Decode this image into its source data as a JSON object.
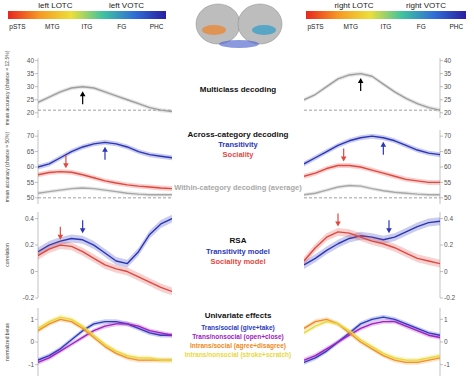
{
  "header": {
    "colorbars": [
      {
        "labels": [
          "left LOTC",
          "left VOTC"
        ],
        "regions": [
          "pSTS",
          "MTG",
          "ITG",
          "FG",
          "PHC"
        ],
        "colors": [
          "#e8261e",
          "#f59a23",
          "#ecdf3a",
          "#3fc3a0",
          "#2f6fd6",
          "#2a1fa0"
        ]
      },
      {
        "labels": [
          "right LOTC",
          "right VOTC"
        ],
        "regions": [
          "pSTS",
          "MTG",
          "ITG",
          "FG",
          "PHC"
        ],
        "colors": [
          "#e8261e",
          "#f59a23",
          "#ecdf3a",
          "#3fc3a0",
          "#2f6fd6",
          "#2a1fa0"
        ]
      }
    ]
  },
  "chart_data": [
    {
      "type": "line",
      "title": "Multiclass decoding",
      "y_label": "mean accuracy (chance = 12.5%)",
      "x": [
        0,
        1,
        2,
        3,
        4,
        5,
        6,
        7,
        8,
        9,
        10,
        11,
        12
      ],
      "xlim": [
        0,
        12
      ],
      "ylim": [
        18,
        41
      ],
      "yticks": [
        20,
        25,
        30,
        35,
        40
      ],
      "tick_labels": "y",
      "reference_lines": [
        21
      ],
      "series": [
        {
          "color": "#9e9e9e",
          "error": 0.8,
          "values": [
            24,
            26,
            28,
            29.5,
            30,
            29.5,
            28,
            26.5,
            25,
            23.5,
            22,
            21,
            20.5
          ]
        }
      ],
      "arrows": [
        {
          "x": 4,
          "y": 28.3,
          "color": "#000000",
          "marker": "arrow-up"
        }
      ]
    },
    {
      "type": "line",
      "x": [
        0,
        1,
        2,
        3,
        4,
        5,
        6,
        7,
        8,
        9,
        10,
        11,
        12
      ],
      "xlim": [
        0,
        12
      ],
      "ylim": [
        18,
        41
      ],
      "yticks": [
        20,
        25,
        30,
        35,
        40
      ],
      "tick_labels": "y",
      "reference_lines": [
        21
      ],
      "series": [
        {
          "color": "#9e9e9e",
          "error": 0.8,
          "values": [
            25,
            27,
            30,
            33,
            34.5,
            35,
            34,
            31,
            28,
            25.5,
            23.5,
            22,
            21
          ]
        }
      ],
      "arrows": [
        {
          "x": 5,
          "y": 33.3,
          "color": "#000000",
          "marker": "arrow-up"
        }
      ]
    },
    {
      "type": "line",
      "title": "Across-category decoding",
      "y_label": "mean accuracy (chance = 50%)",
      "x": [
        0,
        1,
        2,
        3,
        4,
        5,
        6,
        7,
        8,
        9,
        10,
        11,
        12
      ],
      "xlim": [
        0,
        12
      ],
      "ylim": [
        48,
        72
      ],
      "yticks": [
        50,
        55,
        60,
        65,
        70
      ],
      "tick_labels": "y",
      "reference_lines": [
        50
      ],
      "series": [
        {
          "name": "Transitivity",
          "color": "#2a35b8",
          "error": 0.8,
          "values": [
            60,
            61,
            63,
            65,
            66.5,
            67.5,
            68,
            67.5,
            66.5,
            65,
            64,
            63.5,
            63
          ]
        },
        {
          "name": "Sociality",
          "color": "#e0483f",
          "error": 0.8,
          "values": [
            57.5,
            58.2,
            58.5,
            58.3,
            57.5,
            56.5,
            55.5,
            54.8,
            54.2,
            53.8,
            53.5,
            53.2,
            53
          ]
        },
        {
          "name": "Within-category decoding (average)",
          "color": "#a8a8a8",
          "error": 0.6,
          "values": [
            51.5,
            52,
            52.5,
            53,
            53.2,
            53,
            52.5,
            52,
            51.5,
            51.2,
            51,
            51,
            51
          ]
        }
      ],
      "arrows": [
        {
          "x": 2.5,
          "y": 59.6,
          "color": "#e0483f",
          "marker": "arrow-down"
        },
        {
          "x": 6,
          "y": 66.6,
          "color": "#2a35b8",
          "marker": "arrow-up"
        }
      ]
    },
    {
      "type": "line",
      "x": [
        0,
        1,
        2,
        3,
        4,
        5,
        6,
        7,
        8,
        9,
        10,
        11,
        12
      ],
      "xlim": [
        0,
        12
      ],
      "ylim": [
        48,
        72
      ],
      "yticks": [
        50,
        55,
        60,
        65,
        70
      ],
      "tick_labels": "y",
      "reference_lines": [
        50
      ],
      "series": [
        {
          "color": "#2a35b8",
          "error": 0.8,
          "values": [
            61,
            63,
            65,
            67,
            68.5,
            69.5,
            70,
            69.5,
            68.5,
            67,
            65.5,
            64.5,
            64
          ]
        },
        {
          "color": "#e0483f",
          "error": 0.8,
          "values": [
            57,
            58,
            59.5,
            60.5,
            60.5,
            60,
            59,
            58,
            57,
            56,
            55.5,
            55,
            55
          ]
        },
        {
          "color": "#a8a8a8",
          "error": 0.6,
          "values": [
            51,
            51.5,
            52.5,
            53.5,
            54,
            53.8,
            53,
            52.3,
            51.8,
            51.5,
            51.2,
            51,
            51
          ]
        }
      ],
      "arrows": [
        {
          "x": 3.5,
          "y": 61.8,
          "color": "#e0483f",
          "marker": "arrow-down"
        },
        {
          "x": 7,
          "y": 68.2,
          "color": "#2a35b8",
          "marker": "arrow-up"
        }
      ]
    },
    {
      "type": "line",
      "title": "RSA",
      "y_label": "correlation",
      "x": [
        0,
        1,
        2,
        3,
        4,
        5,
        6,
        7,
        8,
        9,
        10,
        11,
        12
      ],
      "xlim": [
        0,
        12
      ],
      "ylim": [
        -0.2,
        0.45
      ],
      "yticks": [
        -0.2,
        0,
        0.2,
        0.4
      ],
      "tick_labels": "y",
      "series": [
        {
          "name": "Transitivity model",
          "color": "#2a35b8",
          "error": 0.03,
          "values": [
            0.15,
            0.2,
            0.23,
            0.25,
            0.24,
            0.2,
            0.14,
            0.08,
            0.06,
            0.15,
            0.28,
            0.36,
            0.4
          ]
        },
        {
          "name": "Sociality model",
          "color": "#e0483f",
          "error": 0.03,
          "values": [
            0.12,
            0.17,
            0.2,
            0.19,
            0.15,
            0.1,
            0.05,
            0.02,
            0,
            -0.04,
            -0.08,
            -0.12,
            -0.15
          ]
        }
      ],
      "arrows": [
        {
          "x": 2,
          "y": 0.24,
          "color": "#e0483f",
          "marker": "arrow-down"
        },
        {
          "x": 4,
          "y": 0.29,
          "color": "#2a35b8",
          "marker": "arrow-down"
        }
      ]
    },
    {
      "type": "line",
      "x": [
        0,
        1,
        2,
        3,
        4,
        5,
        6,
        7,
        8,
        9,
        10,
        11,
        12
      ],
      "xlim": [
        0,
        12
      ],
      "ylim": [
        -0.2,
        0.45
      ],
      "yticks": [
        -0.2,
        0,
        0.2,
        0.4
      ],
      "tick_labels": "y",
      "series": [
        {
          "color": "#2a35b8",
          "error": 0.03,
          "values": [
            0.05,
            0.1,
            0.16,
            0.21,
            0.25,
            0.27,
            0.26,
            0.24,
            0.26,
            0.3,
            0.34,
            0.37,
            0.38
          ]
        },
        {
          "color": "#e0483f",
          "error": 0.03,
          "values": [
            0.08,
            0.18,
            0.26,
            0.3,
            0.29,
            0.26,
            0.23,
            0.21,
            0.18,
            0.14,
            0.1,
            0.08,
            0.06
          ]
        }
      ],
      "arrows": [
        {
          "x": 3,
          "y": 0.34,
          "color": "#e0483f",
          "marker": "arrow-down"
        },
        {
          "x": 7.5,
          "y": 0.29,
          "color": "#2a35b8",
          "marker": "arrow-down"
        }
      ]
    },
    {
      "type": "line",
      "title": "Univariate effects",
      "y_label": "normalized betas",
      "x": [
        0,
        1,
        2,
        3,
        4,
        5,
        6,
        7,
        8,
        9,
        10,
        11,
        12
      ],
      "xlim": [
        0,
        12
      ],
      "ylim": [
        -1.5,
        1.5
      ],
      "yticks": [
        -1,
        0,
        1
      ],
      "tick_labels": "y",
      "series": [
        {
          "name": "Trans/social (give+take)",
          "color": "#2b3bc0",
          "error": 0.1,
          "values": [
            -0.8,
            -0.6,
            -0.3,
            0.1,
            0.5,
            0.8,
            0.9,
            0.9,
            0.8,
            0.6,
            0.4,
            0.3,
            0.3
          ]
        },
        {
          "name": "Trans/nonsocial (open+close)",
          "color": "#a020c0",
          "error": 0.1,
          "values": [
            -0.9,
            -0.7,
            -0.4,
            -0.1,
            0.2,
            0.5,
            0.7,
            0.8,
            0.8,
            0.7,
            0.5,
            0.4,
            0.3
          ]
        },
        {
          "name": "Intrans/social (agree+disagree)",
          "color": "#f08a20",
          "error": 0.1,
          "values": [
            0.5,
            0.8,
            1,
            0.9,
            0.6,
            0.2,
            -0.2,
            -0.5,
            -0.7,
            -0.8,
            -0.8,
            -0.8,
            -0.8
          ]
        },
        {
          "name": "Intrans/nonsocial (stroke+scratch)",
          "color": "#e8d838",
          "error": 0.1,
          "values": [
            0.6,
            0.9,
            1.1,
            1,
            0.7,
            0.3,
            -0.1,
            -0.4,
            -0.6,
            -0.7,
            -0.7,
            -0.8,
            -0.8
          ]
        }
      ]
    },
    {
      "type": "line",
      "x": [
        0,
        1,
        2,
        3,
        4,
        5,
        6,
        7,
        8,
        9,
        10,
        11,
        12
      ],
      "xlim": [
        0,
        12
      ],
      "ylim": [
        -1.5,
        1.5
      ],
      "yticks": [
        -1,
        0,
        1
      ],
      "tick_labels": "y",
      "series": [
        {
          "color": "#2b3bc0",
          "error": 0.1,
          "values": [
            -0.9,
            -0.7,
            -0.4,
            0,
            0.4,
            0.8,
            1,
            1.1,
            1,
            0.8,
            0.6,
            0.4,
            0.3
          ]
        },
        {
          "color": "#a020c0",
          "error": 0.1,
          "values": [
            -0.8,
            -0.6,
            -0.3,
            0,
            0.3,
            0.6,
            0.8,
            0.9,
            0.9,
            0.7,
            0.5,
            0.3,
            0.2
          ]
        },
        {
          "color": "#f08a20",
          "error": 0.1,
          "values": [
            0.6,
            0.9,
            1,
            0.8,
            0.4,
            0,
            -0.3,
            -0.6,
            -0.8,
            -0.9,
            -0.9,
            -0.8,
            -0.7
          ]
        },
        {
          "color": "#e8d838",
          "error": 0.1,
          "values": [
            0.4,
            0.7,
            0.9,
            0.8,
            0.5,
            0.1,
            -0.2,
            -0.5,
            -0.7,
            -0.8,
            -0.8,
            -0.7,
            -0.6
          ]
        }
      ]
    }
  ]
}
